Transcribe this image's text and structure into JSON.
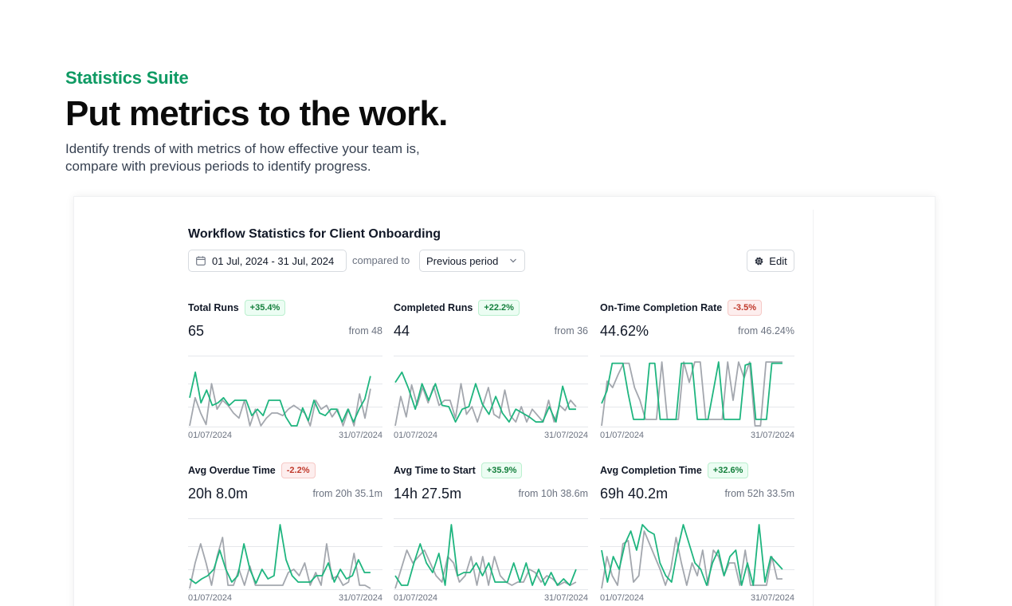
{
  "hero": {
    "eyebrow": "Statistics Suite",
    "headline": "Put metrics to the work.",
    "subhead_line1": "Identify trends of with metrics of how effective your team is,",
    "subhead_line2": "compare with previous periods to identify progress."
  },
  "dashboard": {
    "title": "Workflow Statistics for Client Onboarding",
    "date_range": "01 Jul, 2024 - 31 Jul, 2024",
    "compared_label": "compared to",
    "period_value": "Previous period",
    "edit_label": "Edit"
  },
  "colors": {
    "accent": "#0e9a63",
    "current": "#1fb57f",
    "previous": "#a3a7ae",
    "grid": "#e5e7eb"
  },
  "metrics": [
    {
      "name": "Total Runs",
      "badge": "+35.4%",
      "trend": "pos",
      "value": "65",
      "from": "from 48",
      "x_start": "01/07/2024",
      "x_end": "31/07/2024",
      "ymax": 5,
      "current": [
        2.2,
        4.2,
        1.8,
        2.8,
        1.6,
        1.8,
        2.2,
        1.6,
        2,
        2,
        2,
        0.8,
        1.3,
        0.8,
        2,
        2,
        2,
        0.7,
        0,
        0,
        1.4,
        0.4,
        2,
        1,
        0.8,
        1.3,
        1.3,
        0.3,
        1.3,
        0.3,
        1.3,
        2.1,
        3.9
      ],
      "previous": [
        0,
        2.2,
        1,
        0.1,
        3.3,
        1.3,
        2,
        1.6,
        1,
        0.6,
        2,
        0,
        1.3,
        0,
        0.6,
        1,
        1,
        0.8,
        1.3,
        1.6,
        1.3,
        1,
        0,
        2,
        1.3,
        1.6,
        0.7,
        1.3,
        0,
        1.3,
        0,
        2.5,
        0.6,
        2.9
      ]
    },
    {
      "name": "Completed Runs",
      "badge": "+22.2%",
      "trend": "pos",
      "value": "44",
      "from": "from 36",
      "x_start": "01/07/2024",
      "x_end": "31/07/2024",
      "ymax": 5,
      "current": [
        3.4,
        4.2,
        2.9,
        1.3,
        3.3,
        2,
        3.3,
        1.6,
        1.5,
        0.3,
        1.3,
        1.5,
        3.3,
        1.7,
        0.9,
        2.3,
        1,
        0.3,
        1.3,
        1,
        0.7,
        0.3,
        0.3,
        1.5,
        0.3,
        3.1,
        1.3,
        1.3
      ],
      "previous": [
        0,
        2.3,
        0.7,
        3.2,
        1.6,
        3,
        1.8,
        3.1,
        1.6,
        2,
        2,
        0.6,
        3.3,
        0.9,
        1.5,
        0.3,
        1.6,
        3,
        0.9,
        0.6,
        2.8,
        0.8,
        0.3,
        1.5,
        0.3,
        1.3,
        0.8,
        0.3,
        2,
        0.3,
        1.6,
        1.2,
        2,
        1.5
      ]
    },
    {
      "name": "On-Time Completion Rate",
      "badge": "-3.5%",
      "trend": "neg",
      "value": "44.62%",
      "from": "from 46.24%",
      "x_start": "01/07/2024",
      "x_end": "31/07/2024",
      "ymax": 100,
      "current": [
        35,
        55,
        98,
        98,
        98,
        50,
        10,
        10,
        10,
        98,
        98,
        10,
        10,
        10,
        10,
        98,
        98,
        98,
        10,
        10,
        10,
        55,
        100,
        10,
        10,
        10,
        10,
        95,
        98,
        10,
        10,
        10,
        98,
        98,
        98
      ],
      "previous": [
        0,
        70,
        60,
        80,
        98,
        98,
        60,
        40,
        10,
        10,
        10,
        100,
        10,
        10,
        10,
        100,
        68,
        100,
        100,
        10,
        10,
        10,
        10,
        100,
        40,
        100,
        75,
        100,
        0,
        0,
        100,
        100,
        100,
        100
      ]
    },
    {
      "name": "Avg Overdue Time",
      "badge": "-2.2%",
      "trend": "neg",
      "value": "20h 8.0m",
      "from": "from 20h 35.1m",
      "x_start": "01/07/2024",
      "x_end": "31/07/2024",
      "ymax": 100,
      "current": [
        15,
        8,
        15,
        20,
        30,
        60,
        30,
        10,
        20,
        70,
        30,
        8,
        30,
        15,
        20,
        100,
        45,
        20,
        10,
        10,
        10,
        20,
        20,
        40,
        10,
        30,
        15,
        20,
        45,
        25,
        25
      ],
      "previous": [
        0,
        40,
        70,
        40,
        5,
        50,
        80,
        5,
        5,
        30,
        5,
        35,
        5,
        5,
        5,
        5,
        5,
        5,
        25,
        30,
        20,
        40,
        5,
        25,
        5,
        70,
        15,
        20,
        5,
        10,
        55,
        5,
        5,
        0
      ]
    },
    {
      "name": "Avg Time to Start",
      "badge": "+35.9%",
      "trend": "pos",
      "value": "14h 27.5m",
      "from": "from 10h 38.6m",
      "x_start": "01/07/2024",
      "x_end": "31/07/2024",
      "ymax": 100,
      "current": [
        20,
        5,
        5,
        40,
        70,
        40,
        25,
        55,
        5,
        100,
        20,
        25,
        25,
        40,
        20,
        40,
        10,
        10,
        10,
        40,
        10,
        40,
        5,
        30,
        5,
        25,
        5,
        15,
        5,
        30
      ],
      "previous": [
        0,
        30,
        60,
        40,
        50,
        60,
        40,
        20,
        10,
        50,
        40,
        10,
        20,
        50,
        5,
        50,
        5,
        50,
        20,
        10,
        5,
        10,
        10,
        30,
        25,
        10,
        20,
        15,
        5,
        10,
        5,
        10
      ]
    },
    {
      "name": "Avg Completion Time",
      "badge": "+32.6%",
      "trend": "pos",
      "value": "69h 40.2m",
      "from": "from 52h 33.5m",
      "x_start": "01/07/2024",
      "x_end": "31/07/2024",
      "ymax": 100,
      "current": [
        60,
        10,
        50,
        30,
        70,
        90,
        60,
        100,
        90,
        85,
        40,
        20,
        10,
        60,
        100,
        70,
        40,
        30,
        5,
        40,
        60,
        20,
        50,
        60,
        5,
        40,
        5,
        100,
        10,
        50,
        40,
        30
      ],
      "previous": [
        0,
        50,
        20,
        5,
        70,
        75,
        10,
        20,
        90,
        70,
        50,
        30,
        5,
        30,
        80,
        40,
        5,
        40,
        20,
        60,
        5,
        60,
        50,
        20,
        40,
        40,
        5,
        60,
        5,
        5,
        5,
        5,
        50,
        15,
        15
      ]
    }
  ]
}
